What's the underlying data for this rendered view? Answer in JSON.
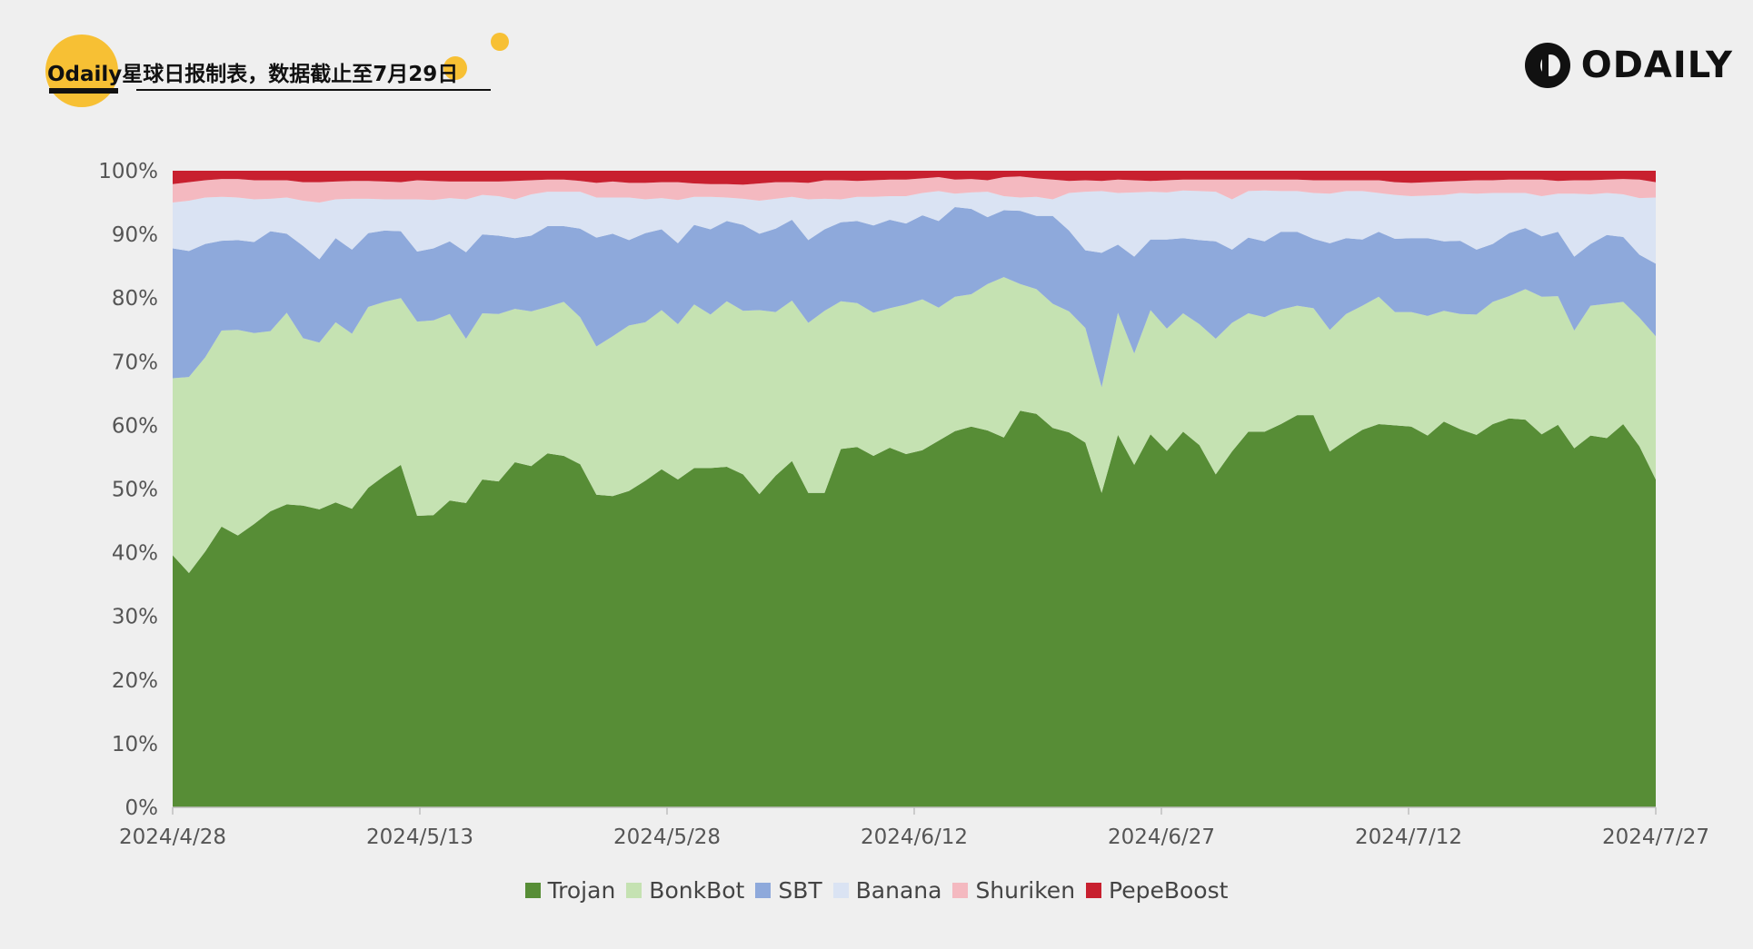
{
  "header": {
    "title": "Odaily星球日报制表，数据截止至7月29日",
    "logo_text": "ODAILY"
  },
  "watermark_text": "星球日报",
  "colors": {
    "Trojan": "#578d36",
    "BonkBot": "#c5e2b2",
    "SBT": "#8ea9db",
    "Banana": "#dae3f3",
    "Shuriken": "#f4b9c0",
    "PepeBoost": "#c8202f"
  },
  "chart_data": {
    "type": "area",
    "stacked": true,
    "normalized": true,
    "ylim": [
      0,
      100
    ],
    "y_ticks": [
      "0%",
      "10%",
      "20%",
      "30%",
      "40%",
      "50%",
      "60%",
      "70%",
      "80%",
      "90%",
      "100%"
    ],
    "x_ticks": [
      "2024/4/28",
      "2024/5/13",
      "2024/5/28",
      "2024/6/12",
      "2024/6/27",
      "2024/7/12",
      "2024/7/27"
    ],
    "x_start": "2024/4/28",
    "x_end": "2024/7/29",
    "legend_position": "bottom",
    "series": [
      {
        "name": "Trojan",
        "cumulative_top": [
          39.6,
          36.8,
          40.2,
          44.1,
          42.7,
          44.5,
          46.5,
          47.6,
          47.4,
          46.8,
          47.9,
          46.9,
          50.2,
          52.1,
          53.8,
          45.8,
          45.9,
          48.2,
          47.8,
          51.5,
          51.2,
          54.2,
          53.6,
          55.6,
          55.2,
          53.9,
          49.1,
          48.9,
          49.7,
          51.3,
          53.1,
          51.5,
          53.3,
          53.3,
          53.5,
          52.3,
          49.2,
          52.1,
          54.4,
          49.4,
          49.4,
          56.3,
          56.6,
          55.2,
          56.5,
          55.5,
          56.1,
          57.6,
          59.1,
          59.8,
          59.2,
          58.1,
          62.3,
          61.8,
          59.6,
          58.9,
          57.3,
          49.4,
          58.5,
          53.8,
          58.6,
          56.0,
          59.0,
          56.9,
          52.3,
          55.9,
          59.0,
          59.0,
          60.2,
          61.6,
          61.6,
          55.9,
          57.7,
          59.3,
          60.2,
          60.0,
          59.8,
          58.4,
          60.6,
          59.4,
          58.5,
          60.2,
          61.1,
          60.9,
          58.6,
          60.1,
          56.4,
          58.4,
          58.0,
          60.2,
          56.7,
          51.5
        ]
      },
      {
        "name": "BonkBot",
        "cumulative_top": [
          67.4,
          67.6,
          70.7,
          74.9,
          75.0,
          74.5,
          74.8,
          77.7,
          73.7,
          73.0,
          76.2,
          74.4,
          78.6,
          79.4,
          80.0,
          76.3,
          76.5,
          77.5,
          73.6,
          77.6,
          77.5,
          78.3,
          77.9,
          78.6,
          79.4,
          77.0,
          72.4,
          74.0,
          75.7,
          76.2,
          78.1,
          75.9,
          79.0,
          77.4,
          79.5,
          78.0,
          78.1,
          77.8,
          79.6,
          76.1,
          78.0,
          79.5,
          79.2,
          77.7,
          78.4,
          79.0,
          79.8,
          78.5,
          80.2,
          80.6,
          82.2,
          83.3,
          82.2,
          81.4,
          79.1,
          77.9,
          75.3,
          66.0,
          77.7,
          71.3,
          78.1,
          75.2,
          77.6,
          75.9,
          73.6,
          76.1,
          77.6,
          77.0,
          78.2,
          78.8,
          78.4,
          75.0,
          77.5,
          78.8,
          80.2,
          77.8,
          77.8,
          77.2,
          78.0,
          77.5,
          77.4,
          79.4,
          80.3,
          81.4,
          80.2,
          80.3,
          74.9,
          78.8,
          79.1,
          79.4,
          76.9,
          74.0
        ]
      },
      {
        "name": "SBT",
        "cumulative_top": [
          87.8,
          87.4,
          88.5,
          89.0,
          89.1,
          88.8,
          90.5,
          90.1,
          88.2,
          86.1,
          89.4,
          87.6,
          90.2,
          90.6,
          90.5,
          87.3,
          87.8,
          88.9,
          87.2,
          90.0,
          89.8,
          89.4,
          89.8,
          91.3,
          91.3,
          90.9,
          89.5,
          90.1,
          89.1,
          90.2,
          90.8,
          88.6,
          91.5,
          90.8,
          92.1,
          91.5,
          90.1,
          90.9,
          92.3,
          89.1,
          90.8,
          91.9,
          92.1,
          91.4,
          92.3,
          91.7,
          93.0,
          92.1,
          94.3,
          94.0,
          92.7,
          93.8,
          93.7,
          92.9,
          92.9,
          90.6,
          87.5,
          87.1,
          88.4,
          86.5,
          89.2,
          89.2,
          89.4,
          89.1,
          88.9,
          87.6,
          89.5,
          88.9,
          90.4,
          90.4,
          89.3,
          88.6,
          89.4,
          89.2,
          90.4,
          89.3,
          89.4,
          89.4,
          88.9,
          89.0,
          87.6,
          88.5,
          90.2,
          91.0,
          89.7,
          90.4,
          86.5,
          88.5,
          89.9,
          89.6,
          86.8,
          85.4
        ]
      },
      {
        "name": "Banana",
        "cumulative_top": [
          95.0,
          95.3,
          95.8,
          95.9,
          95.8,
          95.5,
          95.6,
          95.8,
          95.3,
          95.0,
          95.5,
          95.6,
          95.6,
          95.5,
          95.5,
          95.5,
          95.4,
          95.7,
          95.5,
          96.2,
          96.0,
          95.5,
          96.3,
          96.7,
          96.7,
          96.7,
          95.8,
          95.8,
          95.8,
          95.5,
          95.7,
          95.4,
          95.9,
          95.9,
          95.8,
          95.6,
          95.3,
          95.6,
          95.9,
          95.5,
          95.6,
          95.5,
          95.9,
          95.9,
          96.0,
          96.0,
          96.5,
          96.8,
          96.4,
          96.6,
          96.7,
          96.0,
          95.8,
          95.9,
          95.5,
          96.5,
          96.7,
          96.8,
          96.5,
          96.6,
          96.7,
          96.6,
          96.9,
          96.8,
          96.7,
          95.5,
          96.8,
          96.9,
          96.8,
          96.8,
          96.5,
          96.4,
          96.8,
          96.8,
          96.5,
          96.2,
          96.0,
          96.1,
          96.2,
          96.5,
          96.4,
          96.5,
          96.5,
          96.5,
          96.0,
          96.4,
          96.4,
          96.3,
          96.5,
          96.3,
          95.7,
          95.8
        ]
      },
      {
        "name": "Shuriken",
        "cumulative_top": [
          97.9,
          98.2,
          98.5,
          98.7,
          98.7,
          98.5,
          98.5,
          98.5,
          98.2,
          98.2,
          98.3,
          98.4,
          98.4,
          98.3,
          98.2,
          98.5,
          98.4,
          98.3,
          98.3,
          98.3,
          98.3,
          98.4,
          98.5,
          98.6,
          98.6,
          98.4,
          98.1,
          98.3,
          98.1,
          98.1,
          98.2,
          98.2,
          98.0,
          97.9,
          97.9,
          97.8,
          98.0,
          98.2,
          98.2,
          98.1,
          98.5,
          98.5,
          98.4,
          98.5,
          98.6,
          98.6,
          98.8,
          99.0,
          98.6,
          98.7,
          98.5,
          99.0,
          99.1,
          98.8,
          98.6,
          98.4,
          98.5,
          98.4,
          98.6,
          98.5,
          98.4,
          98.5,
          98.6,
          98.6,
          98.6,
          98.6,
          98.6,
          98.6,
          98.6,
          98.6,
          98.5,
          98.5,
          98.5,
          98.5,
          98.5,
          98.2,
          98.1,
          98.2,
          98.3,
          98.4,
          98.5,
          98.5,
          98.6,
          98.6,
          98.6,
          98.4,
          98.5,
          98.5,
          98.6,
          98.7,
          98.6,
          98.2
        ]
      },
      {
        "name": "PepeBoost",
        "cumulative_top": [
          100,
          100,
          100,
          100,
          100,
          100,
          100,
          100,
          100,
          100,
          100,
          100,
          100,
          100,
          100,
          100,
          100,
          100,
          100,
          100,
          100,
          100,
          100,
          100,
          100,
          100,
          100,
          100,
          100,
          100,
          100,
          100,
          100,
          100,
          100,
          100,
          100,
          100,
          100,
          100,
          100,
          100,
          100,
          100,
          100,
          100,
          100,
          100,
          100,
          100,
          100,
          100,
          100,
          100,
          100,
          100,
          100,
          100,
          100,
          100,
          100,
          100,
          100,
          100,
          100,
          100,
          100,
          100,
          100,
          100,
          100,
          100,
          100,
          100,
          100,
          100,
          100,
          100,
          100,
          100,
          100,
          100,
          100,
          100,
          100,
          100,
          100,
          100,
          100,
          100,
          100,
          100
        ]
      }
    ]
  }
}
